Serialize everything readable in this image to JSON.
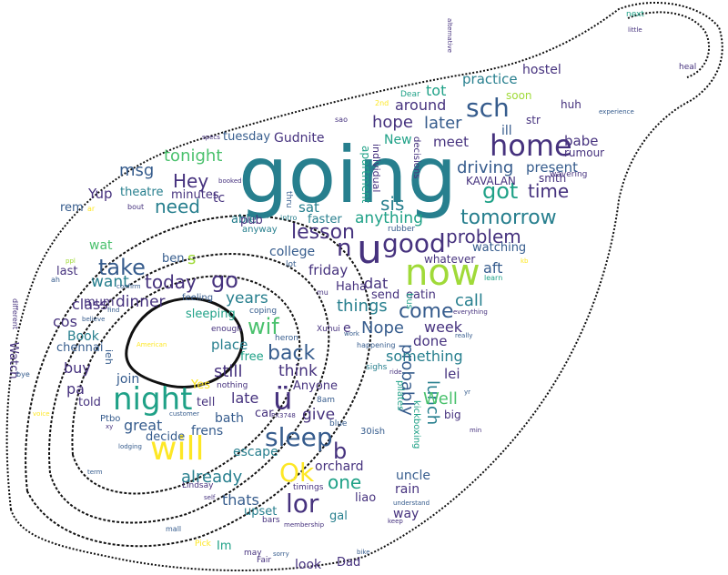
{
  "cloud": {
    "palette": {
      "yellow": "#fde725",
      "lime": "#a0da39",
      "green": "#4ac16d",
      "teal": "#1fa187",
      "cyan": "#277f8e",
      "blue": "#365c8d",
      "indigo": "#46327e",
      "purple": "#440154"
    },
    "words": [
      {
        "t": "going",
        "c": "cyan"
      },
      {
        "t": "now",
        "c": "lime"
      },
      {
        "t": "u",
        "c": "indigo"
      },
      {
        "t": "home",
        "c": "indigo"
      },
      {
        "t": "night",
        "c": "teal"
      },
      {
        "t": "will",
        "c": "yellow"
      },
      {
        "t": "sleep",
        "c": "blue"
      },
      {
        "t": "ü",
        "c": "indigo"
      },
      {
        "t": "good",
        "c": "indigo"
      },
      {
        "t": "lor",
        "c": "indigo"
      },
      {
        "t": "Ok",
        "c": "yellow"
      },
      {
        "t": "sch",
        "c": "blue"
      },
      {
        "t": "got",
        "c": "teal"
      },
      {
        "t": "take",
        "c": "blue"
      },
      {
        "t": "go",
        "c": "indigo"
      },
      {
        "t": "lesson",
        "c": "indigo"
      },
      {
        "t": "tomorrow",
        "c": "cyan"
      },
      {
        "t": "Hey",
        "c": "indigo"
      },
      {
        "t": "need",
        "c": "cyan"
      },
      {
        "t": "wif",
        "c": "green"
      },
      {
        "t": "back",
        "c": "blue"
      },
      {
        "t": "come",
        "c": "blue"
      },
      {
        "t": "time",
        "c": "indigo"
      },
      {
        "t": "problem",
        "c": "indigo"
      },
      {
        "t": "probably",
        "c": "blue"
      },
      {
        "t": "today",
        "c": "indigo"
      },
      {
        "t": "later",
        "c": "blue"
      },
      {
        "t": "sis",
        "c": "cyan"
      },
      {
        "t": "driving",
        "c": "blue"
      },
      {
        "t": "tonight",
        "c": "green"
      },
      {
        "t": "msg",
        "c": "blue"
      },
      {
        "t": "hope",
        "c": "indigo"
      },
      {
        "t": "around",
        "c": "indigo"
      },
      {
        "t": "still",
        "c": "indigo"
      },
      {
        "t": "already",
        "c": "cyan"
      },
      {
        "t": "Nope",
        "c": "blue"
      },
      {
        "t": "things",
        "c": "cyan"
      },
      {
        "t": "n",
        "c": "indigo"
      },
      {
        "t": "b",
        "c": "indigo"
      },
      {
        "t": "one",
        "c": "teal"
      },
      {
        "t": "anything",
        "c": "teal"
      },
      {
        "t": "call",
        "c": "cyan"
      },
      {
        "t": "lunch",
        "c": "cyan"
      },
      {
        "t": "Well",
        "c": "green"
      },
      {
        "t": "think",
        "c": "indigo"
      },
      {
        "t": "give",
        "c": "indigo"
      },
      {
        "t": "years",
        "c": "cyan"
      },
      {
        "t": "dinner",
        "c": "indigo"
      },
      {
        "t": "want",
        "c": "cyan"
      },
      {
        "t": "something",
        "c": "cyan"
      },
      {
        "t": "thats",
        "c": "blue"
      },
      {
        "t": "late",
        "c": "indigo"
      },
      {
        "t": "great",
        "c": "blue"
      },
      {
        "t": "class",
        "c": "indigo"
      },
      {
        "t": "present",
        "c": "blue"
      },
      {
        "t": "practice",
        "c": "cyan"
      },
      {
        "t": "Yup",
        "c": "indigo"
      },
      {
        "t": "tot",
        "c": "teal"
      },
      {
        "t": "meet",
        "c": "indigo"
      },
      {
        "t": "week",
        "c": "indigo"
      },
      {
        "t": "buy",
        "c": "indigo"
      },
      {
        "t": "cos",
        "c": "indigo"
      },
      {
        "t": "place",
        "c": "cyan"
      },
      {
        "t": "done",
        "c": "indigo"
      },
      {
        "t": "pa",
        "c": "indigo"
      },
      {
        "t": "aft",
        "c": "blue"
      },
      {
        "t": "friday",
        "c": "indigo"
      },
      {
        "t": "sat",
        "c": "cyan"
      },
      {
        "t": "dat",
        "c": "indigo"
      },
      {
        "t": "college",
        "c": "blue"
      },
      {
        "t": "babe",
        "c": "indigo"
      },
      {
        "t": "New",
        "c": "teal"
      },
      {
        "t": "hostel",
        "c": "indigo"
      },
      {
        "t": "ill",
        "c": "blue"
      },
      {
        "t": "orchard",
        "c": "indigo"
      },
      {
        "t": "uncle",
        "c": "blue"
      },
      {
        "t": "rain",
        "c": "indigo"
      },
      {
        "t": "lei",
        "c": "indigo"
      },
      {
        "t": "Book",
        "c": "cyan"
      },
      {
        "t": "wat",
        "c": "green"
      },
      {
        "t": "s",
        "c": "lime"
      },
      {
        "t": "e",
        "c": "indigo"
      },
      {
        "t": "look",
        "c": "indigo"
      },
      {
        "t": "Dad",
        "c": "indigo"
      },
      {
        "t": "way",
        "c": "indigo"
      },
      {
        "t": "bath",
        "c": "blue"
      },
      {
        "t": "frens",
        "c": "blue"
      },
      {
        "t": "escape",
        "c": "cyan"
      },
      {
        "t": "decide",
        "c": "blue"
      },
      {
        "t": "join",
        "c": "blue"
      },
      {
        "t": "watching",
        "c": "blue"
      },
      {
        "t": "eatin",
        "c": "indigo"
      },
      {
        "t": "send",
        "c": "indigo"
      },
      {
        "t": "Haha",
        "c": "indigo"
      },
      {
        "t": "Gudnite",
        "c": "indigo"
      },
      {
        "t": "tuesday",
        "c": "blue"
      },
      {
        "t": "theatre",
        "c": "cyan"
      },
      {
        "t": "minutes",
        "c": "indigo"
      },
      {
        "t": "tc",
        "c": "indigo"
      },
      {
        "t": "able",
        "c": "cyan"
      },
      {
        "t": "pub",
        "c": "indigo"
      },
      {
        "t": "faster",
        "c": "cyan"
      },
      {
        "t": "rem",
        "c": "blue"
      },
      {
        "t": "mum",
        "c": "indigo"
      },
      {
        "t": "last",
        "c": "indigo"
      },
      {
        "t": "ben",
        "c": "blue"
      },
      {
        "t": "sleeping",
        "c": "teal"
      },
      {
        "t": "free",
        "c": "teal"
      },
      {
        "t": "told",
        "c": "indigo"
      },
      {
        "t": "tell",
        "c": "indigo"
      },
      {
        "t": "Yes",
        "c": "yellow"
      },
      {
        "t": "Anyone",
        "c": "indigo"
      },
      {
        "t": "car",
        "c": "indigo"
      },
      {
        "t": "liao",
        "c": "indigo"
      },
      {
        "t": "gal",
        "c": "cyan"
      },
      {
        "t": "upset",
        "c": "cyan"
      },
      {
        "t": "Im",
        "c": "teal"
      },
      {
        "t": "chennai",
        "c": "blue"
      },
      {
        "t": "Watch",
        "c": "indigo"
      },
      {
        "t": "soon",
        "c": "lime"
      },
      {
        "t": "smth",
        "c": "indigo"
      },
      {
        "t": "huh",
        "c": "indigo"
      },
      {
        "t": "rumour",
        "c": "indigo"
      },
      {
        "t": "whatever",
        "c": "indigo"
      },
      {
        "t": "str",
        "c": "indigo"
      },
      {
        "t": "KAVALAN",
        "c": "indigo"
      },
      {
        "t": "Xuhui",
        "c": "indigo"
      },
      {
        "t": "lot",
        "c": "blue"
      },
      {
        "t": "mu",
        "c": "indigo"
      },
      {
        "t": "feeling",
        "c": "blue"
      },
      {
        "t": "heron",
        "c": "blue"
      },
      {
        "t": "enough",
        "c": "indigo"
      },
      {
        "t": "nothing",
        "c": "indigo"
      },
      {
        "t": "coping",
        "c": "blue"
      },
      {
        "t": "anyway",
        "c": "cyan"
      },
      {
        "t": "intro",
        "c": "cyan"
      },
      {
        "t": "thru",
        "c": "blue"
      },
      {
        "t": "30ish",
        "c": "blue"
      },
      {
        "t": "blue",
        "c": "blue"
      },
      {
        "t": "8am",
        "c": "blue"
      },
      {
        "t": "big",
        "c": "indigo"
      },
      {
        "t": "timings",
        "c": "indigo"
      },
      {
        "t": "bars",
        "c": "indigo"
      },
      {
        "t": "Lindsay",
        "c": "indigo"
      },
      {
        "t": "Ptbo",
        "c": "blue"
      },
      {
        "t": "Dear",
        "c": "teal"
      },
      {
        "t": "sao",
        "c": "indigo"
      },
      {
        "t": "2nd",
        "c": "yellow"
      },
      {
        "t": "wavering",
        "c": "indigo"
      },
      {
        "t": "next",
        "c": "teal"
      },
      {
        "t": "heal",
        "c": "indigo"
      },
      {
        "t": "little",
        "c": "indigo"
      },
      {
        "t": "experience",
        "c": "blue"
      },
      {
        "t": "specs",
        "c": "indigo"
      },
      {
        "t": "booked",
        "c": "indigo"
      },
      {
        "t": "bout",
        "c": "indigo"
      },
      {
        "t": "ar",
        "c": "yellow"
      },
      {
        "t": "ah",
        "c": "blue"
      },
      {
        "t": "confirm",
        "c": "blue"
      },
      {
        "t": "find",
        "c": "blue"
      },
      {
        "t": "believe",
        "c": "blue"
      },
      {
        "t": "learn",
        "c": "teal"
      },
      {
        "t": "everything",
        "c": "indigo"
      },
      {
        "t": "really",
        "c": "blue"
      },
      {
        "t": "work",
        "c": "blue"
      },
      {
        "t": "happening",
        "c": "blue"
      },
      {
        "t": "sighs",
        "c": "cyan"
      },
      {
        "t": "ride",
        "c": "indigo"
      },
      {
        "t": "customer",
        "c": "blue"
      },
      {
        "t": "PX3748",
        "c": "indigo"
      },
      {
        "t": "lodging",
        "c": "blue"
      },
      {
        "t": "xy",
        "c": "indigo"
      },
      {
        "t": "term",
        "c": "blue"
      },
      {
        "t": "self",
        "c": "indigo"
      },
      {
        "t": "mall",
        "c": "blue"
      },
      {
        "t": "Pick",
        "c": "yellow"
      },
      {
        "t": "may",
        "c": "indigo"
      },
      {
        "t": "Fair",
        "c": "indigo"
      },
      {
        "t": "sorry",
        "c": "blue"
      },
      {
        "t": "membership",
        "c": "indigo"
      },
      {
        "t": "understand",
        "c": "blue"
      },
      {
        "t": "keep",
        "c": "indigo"
      },
      {
        "t": "bike",
        "c": "blue"
      },
      {
        "t": "yr",
        "c": "blue"
      },
      {
        "t": "American",
        "c": "yellow"
      },
      {
        "t": "different",
        "c": "indigo"
      },
      {
        "t": "bye",
        "c": "blue"
      },
      {
        "t": "voice",
        "c": "yellow"
      },
      {
        "t": "apartment",
        "c": "teal"
      },
      {
        "t": "individual",
        "c": "indigo"
      },
      {
        "t": "decisions",
        "c": "indigo"
      },
      {
        "t": "alternative",
        "c": "indigo"
      },
      {
        "t": "rubber",
        "c": "blue"
      },
      {
        "t": "bus",
        "c": "teal"
      },
      {
        "t": "pilates",
        "c": "teal"
      },
      {
        "t": "kickboxing",
        "c": "teal"
      },
      {
        "t": "ieh",
        "c": "blue"
      },
      {
        "t": "min",
        "c": "indigo"
      },
      {
        "t": "kb",
        "c": "yellow"
      },
      {
        "t": "ppl",
        "c": "lime"
      }
    ]
  }
}
